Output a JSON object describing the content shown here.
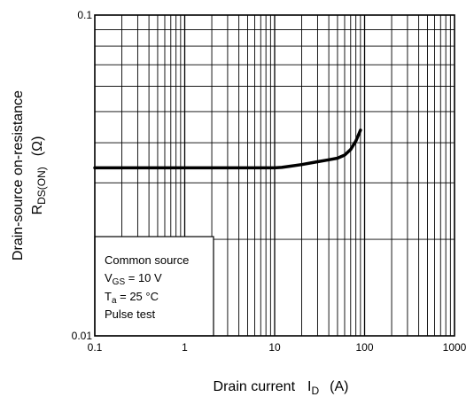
{
  "chart_data": {
    "type": "line",
    "title": "",
    "xscale": "log",
    "yscale": "log",
    "xlim": [
      0.1,
      1000
    ],
    "ylim": [
      0.01,
      0.1
    ],
    "grid": true,
    "xlabel": {
      "main": "Drain current",
      "symbol": "I",
      "symbol_sub": "D",
      "unit": "(A)"
    },
    "ylabel": {
      "line1": "Drain-source on-resistance",
      "symbol": "R",
      "symbol_sub": "DS(ON)",
      "unit": "(Ω)"
    },
    "xticks": [
      {
        "value": 0.1,
        "label": "0.1"
      },
      {
        "value": 1,
        "label": "1"
      },
      {
        "value": 10,
        "label": "10"
      },
      {
        "value": 100,
        "label": "100"
      },
      {
        "value": 1000,
        "label": "1000"
      }
    ],
    "yticks": [
      {
        "value": 0.01,
        "label": "0.01"
      },
      {
        "value": 0.1,
        "label": "0.1"
      }
    ],
    "series": [
      {
        "color": "#000000",
        "x": [
          0.1,
          0.5,
          1,
          5,
          10,
          12,
          15,
          20,
          30,
          40,
          50,
          60,
          70,
          80,
          90
        ],
        "y": [
          0.0334,
          0.0334,
          0.0334,
          0.0334,
          0.0334,
          0.0335,
          0.0338,
          0.0342,
          0.0349,
          0.0354,
          0.0358,
          0.0366,
          0.0381,
          0.0405,
          0.0438
        ]
      }
    ],
    "legend": {
      "position": "bottom-left",
      "lines": [
        {
          "text": "Common source"
        },
        {
          "text": "V",
          "sub": "GS",
          "rest": " = 10 V"
        },
        {
          "text": "T",
          "sub": "a",
          "rest": " = 25 °C"
        },
        {
          "text": "Pulse test"
        }
      ]
    }
  }
}
